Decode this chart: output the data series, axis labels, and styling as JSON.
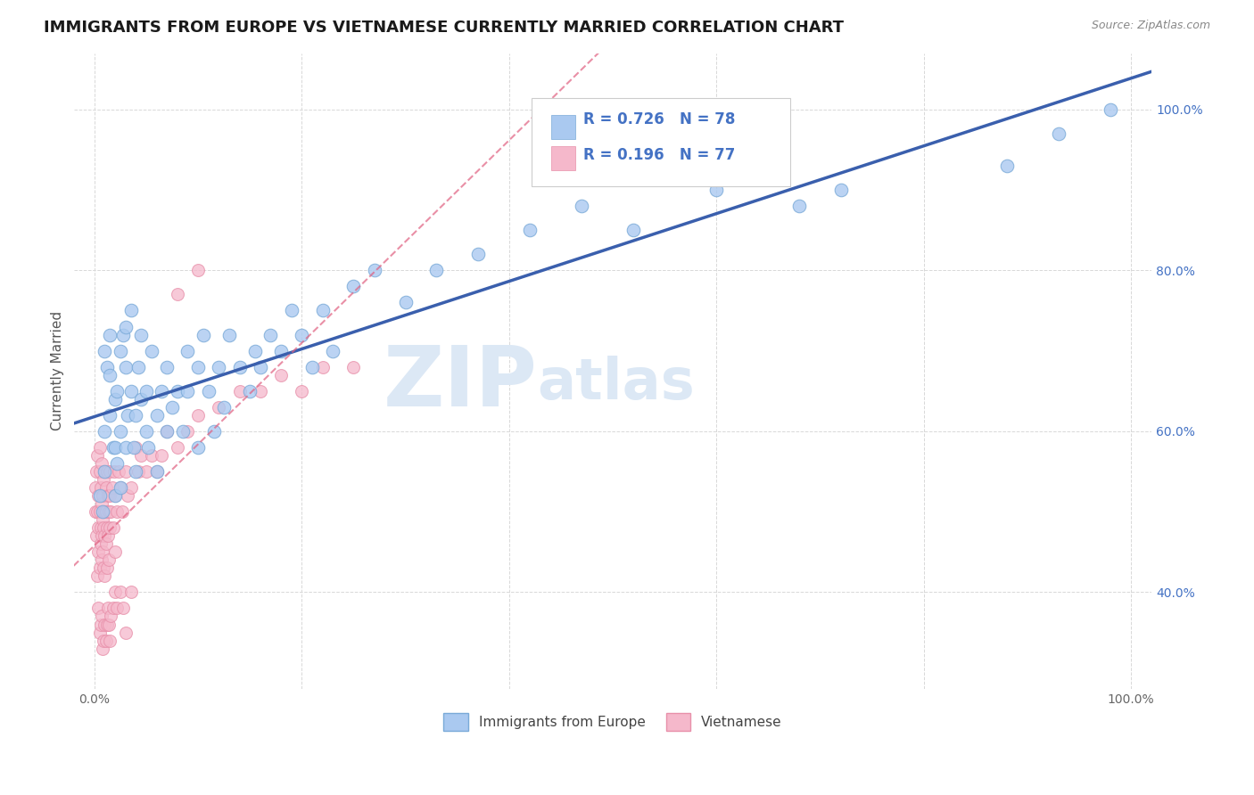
{
  "title": "IMMIGRANTS FROM EUROPE VS VIETNAMESE CURRENTLY MARRIED CORRELATION CHART",
  "source": "Source: ZipAtlas.com",
  "ylabel": "Currently Married",
  "xlim": [
    -0.02,
    1.02
  ],
  "ylim": [
    0.28,
    1.07
  ],
  "xticks": [
    0.0,
    0.2,
    0.4,
    0.6,
    0.8,
    1.0
  ],
  "xticklabels": [
    "0.0%",
    "",
    "",
    "",
    "",
    "100.0%"
  ],
  "yticks_right": [
    0.4,
    0.6,
    0.8,
    1.0
  ],
  "yticklabels_right": [
    "40.0%",
    "60.0%",
    "80.0%",
    "100.0%"
  ],
  "blue_R": 0.726,
  "blue_N": 78,
  "pink_R": 0.196,
  "pink_N": 77,
  "blue_color": "#aac9f0",
  "pink_color": "#f5b8cb",
  "blue_edge_color": "#7aaad8",
  "pink_edge_color": "#e890aa",
  "blue_line_color": "#3a5fad",
  "pink_line_color": "#e06080",
  "legend_text_color": "#4472c4",
  "watermark": "ZIPatlas",
  "watermark_color": "#dce8f5",
  "background_color": "#ffffff",
  "grid_color": "#d8d8d8",
  "title_fontsize": 13,
  "axis_label_fontsize": 11,
  "tick_fontsize": 10,
  "blue_x": [
    0.005,
    0.008,
    0.01,
    0.01,
    0.01,
    0.012,
    0.015,
    0.015,
    0.015,
    0.018,
    0.02,
    0.02,
    0.02,
    0.022,
    0.022,
    0.025,
    0.025,
    0.025,
    0.028,
    0.03,
    0.03,
    0.03,
    0.032,
    0.035,
    0.035,
    0.038,
    0.04,
    0.04,
    0.042,
    0.045,
    0.045,
    0.05,
    0.05,
    0.052,
    0.055,
    0.06,
    0.06,
    0.065,
    0.07,
    0.07,
    0.075,
    0.08,
    0.085,
    0.09,
    0.09,
    0.1,
    0.1,
    0.105,
    0.11,
    0.115,
    0.12,
    0.125,
    0.13,
    0.14,
    0.15,
    0.155,
    0.16,
    0.17,
    0.18,
    0.19,
    0.2,
    0.21,
    0.22,
    0.23,
    0.25,
    0.27,
    0.3,
    0.33,
    0.37,
    0.42,
    0.47,
    0.52,
    0.6,
    0.68,
    0.72,
    0.88,
    0.93,
    0.98
  ],
  "blue_y": [
    0.52,
    0.5,
    0.7,
    0.6,
    0.55,
    0.68,
    0.62,
    0.72,
    0.67,
    0.58,
    0.58,
    0.64,
    0.52,
    0.56,
    0.65,
    0.6,
    0.7,
    0.53,
    0.72,
    0.68,
    0.73,
    0.58,
    0.62,
    0.75,
    0.65,
    0.58,
    0.62,
    0.55,
    0.68,
    0.64,
    0.72,
    0.6,
    0.65,
    0.58,
    0.7,
    0.62,
    0.55,
    0.65,
    0.6,
    0.68,
    0.63,
    0.65,
    0.6,
    0.65,
    0.7,
    0.58,
    0.68,
    0.72,
    0.65,
    0.6,
    0.68,
    0.63,
    0.72,
    0.68,
    0.65,
    0.7,
    0.68,
    0.72,
    0.7,
    0.75,
    0.72,
    0.68,
    0.75,
    0.7,
    0.78,
    0.8,
    0.76,
    0.8,
    0.82,
    0.85,
    0.88,
    0.85,
    0.9,
    0.88,
    0.9,
    0.93,
    0.97,
    1.0
  ],
  "pink_x": [
    0.001,
    0.001,
    0.002,
    0.002,
    0.003,
    0.003,
    0.003,
    0.004,
    0.004,
    0.004,
    0.005,
    0.005,
    0.005,
    0.005,
    0.006,
    0.006,
    0.006,
    0.007,
    0.007,
    0.007,
    0.007,
    0.008,
    0.008,
    0.008,
    0.009,
    0.009,
    0.009,
    0.01,
    0.01,
    0.01,
    0.01,
    0.011,
    0.011,
    0.011,
    0.012,
    0.012,
    0.012,
    0.013,
    0.013,
    0.014,
    0.014,
    0.015,
    0.015,
    0.015,
    0.016,
    0.017,
    0.018,
    0.019,
    0.02,
    0.02,
    0.022,
    0.023,
    0.025,
    0.027,
    0.03,
    0.032,
    0.035,
    0.04,
    0.042,
    0.045,
    0.05,
    0.055,
    0.06,
    0.065,
    0.07,
    0.08,
    0.09,
    0.1,
    0.12,
    0.14,
    0.16,
    0.18,
    0.2,
    0.22,
    0.25,
    0.08,
    0.1
  ],
  "pink_y": [
    0.5,
    0.53,
    0.47,
    0.55,
    0.42,
    0.5,
    0.57,
    0.45,
    0.52,
    0.48,
    0.43,
    0.5,
    0.55,
    0.58,
    0.46,
    0.53,
    0.48,
    0.44,
    0.51,
    0.56,
    0.47,
    0.52,
    0.45,
    0.49,
    0.54,
    0.48,
    0.43,
    0.5,
    0.55,
    0.47,
    0.42,
    0.53,
    0.46,
    0.5,
    0.48,
    0.55,
    0.43,
    0.52,
    0.47,
    0.5,
    0.44,
    0.52,
    0.48,
    0.55,
    0.5,
    0.53,
    0.48,
    0.55,
    0.52,
    0.45,
    0.5,
    0.55,
    0.53,
    0.5,
    0.55,
    0.52,
    0.53,
    0.58,
    0.55,
    0.57,
    0.55,
    0.57,
    0.55,
    0.57,
    0.6,
    0.58,
    0.6,
    0.62,
    0.63,
    0.65,
    0.65,
    0.67,
    0.65,
    0.68,
    0.68,
    0.77,
    0.8
  ],
  "pink_low_x": [
    0.004,
    0.005,
    0.006,
    0.007,
    0.008,
    0.009,
    0.01,
    0.011,
    0.012,
    0.013,
    0.014,
    0.015,
    0.016,
    0.018,
    0.02,
    0.022,
    0.025,
    0.028,
    0.03,
    0.035
  ],
  "pink_low_y": [
    0.38,
    0.35,
    0.36,
    0.37,
    0.33,
    0.34,
    0.36,
    0.34,
    0.36,
    0.38,
    0.36,
    0.34,
    0.37,
    0.38,
    0.4,
    0.38,
    0.4,
    0.38,
    0.35,
    0.4
  ]
}
